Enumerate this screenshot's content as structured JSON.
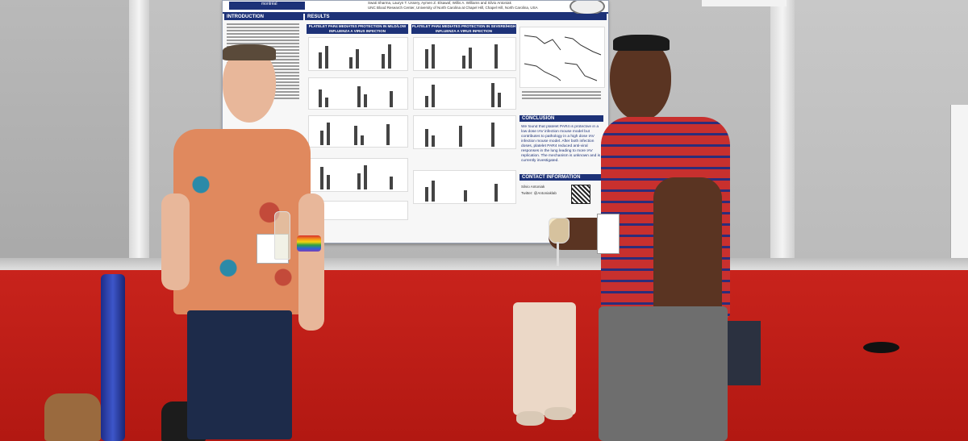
{
  "poster": {
    "header_logo": "montréal",
    "authors": "Swati Sharma, Lauryn T. Ussery, Aymen Z. Elsawaf, Willis A. Williams and Silvio Antoniak",
    "affiliation": "UNC Blood Research Center, University of North Carolina at Chapel Hill, Chapel Hill, North Carolina, USA",
    "sections": {
      "introduction": "INTRODUCTION",
      "results": "RESULTS",
      "conclusion": "CONCLUSION",
      "contact": "CONTACT INFORMATION"
    },
    "results_col1_title": "PLATELET PAR4 MEDIATES PROTECTION IN MILD/LOW INFLUENZA A VIRUS INFECTION",
    "results_col2_title": "PLATELET PAR4 MEDIATES PROTECTION IN SEVERE/HIGH INFLUENZA A VIRUS INFECTION",
    "conclusion_text": "We found that platelet PAR4 is protective in a low dose IAV infection mouse model but contributes to pathology in a high dose IAV infection mouse model. After both infection doses, platelet PAR4 reduced anti-viral responses in the lung leading to more IAV replication. The mechanism is unknown and is currently investigated.",
    "contact_lines": [
      "Silvio Antoniak",
      "Twitter: @Antoniaklab"
    ]
  },
  "badges": {
    "left_person": "",
    "right_person": ""
  }
}
